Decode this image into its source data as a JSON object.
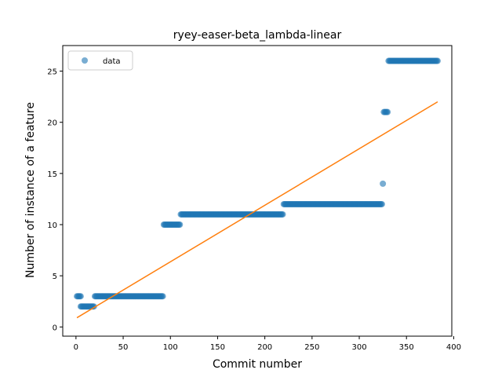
{
  "chart_data": {
    "type": "scatter",
    "title": "ryey-easer-beta_lambda-linear",
    "xlabel": "Commit number",
    "ylabel": "Number of instance of a feature",
    "xlim": [
      -14,
      398
    ],
    "ylim": [
      -0.9,
      27.5
    ],
    "xticks": [
      0,
      50,
      100,
      150,
      200,
      250,
      300,
      350,
      400
    ],
    "yticks": [
      0,
      5,
      10,
      15,
      20,
      25
    ],
    "grid": false,
    "legend": {
      "position": "top-left",
      "entries": [
        "data"
      ]
    },
    "colors": {
      "data": "#1f77b4",
      "fit": "#ff7f0e"
    },
    "series": [
      {
        "name": "data",
        "kind": "scatter",
        "segments": [
          {
            "x_start": 1,
            "x_end": 5,
            "y": 3
          },
          {
            "x_start": 5,
            "x_end": 19,
            "y": 2
          },
          {
            "x_start": 20,
            "x_end": 92,
            "y": 3
          },
          {
            "x_start": 93,
            "x_end": 110,
            "y": 10
          },
          {
            "x_start": 111,
            "x_end": 219,
            "y": 11
          },
          {
            "x_start": 220,
            "x_end": 324,
            "y": 12
          },
          {
            "x_start": 325,
            "x_end": 325,
            "y": 14
          },
          {
            "x_start": 326,
            "x_end": 330,
            "y": 21
          },
          {
            "x_start": 331,
            "x_end": 383,
            "y": 26
          }
        ]
      },
      {
        "kind": "line",
        "x": [
          1,
          383
        ],
        "y": [
          0.9,
          22
        ]
      }
    ]
  }
}
